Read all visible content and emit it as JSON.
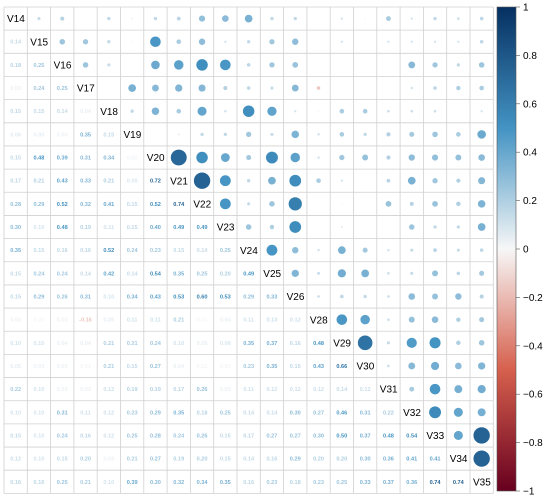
{
  "chart_data": {
    "type": "heatmap",
    "variables": [
      "V14",
      "V15",
      "V16",
      "V17",
      "V18",
      "V19",
      "V20",
      "V21",
      "V22",
      "V23",
      "V24",
      "V25",
      "V26",
      "V28",
      "V29",
      "V30",
      "V31",
      "V32",
      "V33",
      "V34",
      "V35"
    ],
    "correlations": [
      [
        1,
        0.14,
        0.18,
        0.03,
        0.15,
        0.06,
        0.15,
        0.17,
        0.28,
        0.3,
        0.35,
        0.15,
        0.15,
        0.03,
        0.1,
        0.05,
        0.22,
        0.1,
        0.15,
        0.12,
        0.16
      ],
      [
        0.14,
        1,
        0.25,
        0.24,
        0.15,
        0.05,
        0.48,
        0.21,
        0.29,
        0.1,
        0.15,
        0.24,
        0.29,
        0.01,
        0.1,
        0.03,
        0.1,
        0.1,
        0.1,
        0.1,
        0.16
      ],
      [
        0.18,
        0.25,
        1,
        0.25,
        0.14,
        0.03,
        0.39,
        0.43,
        0.52,
        0.48,
        0.16,
        0.24,
        0.26,
        0.03,
        0.04,
        0.03,
        0.03,
        0.31,
        0.24,
        0.15,
        0.25
      ],
      [
        0.03,
        0.24,
        0.25,
        1,
        0.04,
        0.35,
        0.31,
        0.33,
        0.32,
        0.19,
        0.16,
        0.14,
        0.31,
        -0.16,
        0.04,
        0.01,
        0.03,
        0.11,
        0.16,
        0.2,
        0.21
      ],
      [
        0.15,
        0.15,
        0.14,
        0.04,
        1,
        0.15,
        0.34,
        0.21,
        0.41,
        0.11,
        0.52,
        0.42,
        0.1,
        0.05,
        0.21,
        0.21,
        0.12,
        0.12,
        0.12,
        0.03,
        0.1
      ],
      [
        0.06,
        0.05,
        0.03,
        0.35,
        0.15,
        1,
        0.02,
        0.08,
        0.15,
        0.15,
        0.24,
        0.14,
        0.34,
        0.11,
        0.21,
        0.15,
        0.19,
        0.23,
        0.25,
        0.21,
        0.39
      ],
      [
        0.15,
        0.48,
        0.39,
        0.31,
        0.34,
        0.02,
        1,
        0.72,
        0.52,
        0.4,
        0.23,
        0.54,
        0.43,
        0.11,
        0.24,
        0.27,
        0.19,
        0.29,
        0.28,
        0.27,
        0.3
      ],
      [
        0.17,
        0.21,
        0.43,
        0.33,
        0.21,
        0.08,
        0.72,
        1,
        0.74,
        0.49,
        0.15,
        0.35,
        0.53,
        0.21,
        0.1,
        0.04,
        0.17,
        0.35,
        0.24,
        0.19,
        0.32
      ],
      [
        0.28,
        0.29,
        0.52,
        0.32,
        0.41,
        0.15,
        0.52,
        0.74,
        1,
        0.49,
        0.14,
        0.25,
        0.6,
        0.01,
        0.05,
        0.01,
        0.26,
        0.18,
        0.26,
        0.2,
        0.34
      ],
      [
        0.3,
        0.1,
        0.48,
        0.19,
        0.11,
        0.15,
        0.4,
        0.49,
        0.49,
        1,
        0.25,
        0.2,
        0.53,
        0.04,
        0.08,
        0.01,
        0.03,
        0.25,
        0.15,
        0.15,
        0.35
      ],
      [
        0.35,
        0.15,
        0.16,
        0.16,
        0.52,
        0.24,
        0.23,
        0.15,
        0.14,
        0.25,
        1,
        0.49,
        0.29,
        0.11,
        0.35,
        0.23,
        0.11,
        0.14,
        0.17,
        0.14,
        0.16
      ],
      [
        0.15,
        0.24,
        0.24,
        0.14,
        0.42,
        0.14,
        0.54,
        0.35,
        0.25,
        0.2,
        0.49,
        1,
        0.33,
        0.13,
        0.37,
        0.35,
        0.12,
        0.14,
        0.27,
        0.16,
        0.23
      ],
      [
        0.15,
        0.29,
        0.26,
        0.31,
        0.1,
        0.34,
        0.43,
        0.53,
        0.6,
        0.53,
        0.29,
        0.33,
        1,
        0.12,
        0.16,
        0.15,
        0.12,
        0.3,
        0.27,
        0.29,
        0.18
      ],
      [
        0.03,
        0.01,
        0.03,
        -0.16,
        0.05,
        0.11,
        0.11,
        0.21,
        0.01,
        0.04,
        0.11,
        0.13,
        0.12,
        1,
        0.48,
        0.43,
        0.12,
        0.27,
        0.3,
        0.2,
        0.23
      ],
      [
        0.1,
        0.1,
        0.04,
        0.04,
        0.21,
        0.21,
        0.24,
        0.1,
        0.05,
        0.08,
        0.35,
        0.37,
        0.16,
        0.48,
        1,
        0.66,
        0.14,
        0.46,
        0.5,
        0.2,
        0.25
      ],
      [
        0.05,
        0.03,
        0.03,
        0.01,
        0.21,
        0.15,
        0.27,
        0.04,
        0.01,
        0.01,
        0.23,
        0.35,
        0.15,
        0.43,
        0.66,
        1,
        0.12,
        0.31,
        0.37,
        0.3,
        0.33
      ],
      [
        0.22,
        0.1,
        0.03,
        0.03,
        0.12,
        0.19,
        0.19,
        0.17,
        0.26,
        0.03,
        0.11,
        0.12,
        0.12,
        0.12,
        0.14,
        0.12,
        1,
        0.22,
        0.48,
        0.36,
        0.37
      ],
      [
        0.1,
        0.1,
        0.31,
        0.11,
        0.12,
        0.23,
        0.29,
        0.35,
        0.18,
        0.25,
        0.14,
        0.14,
        0.3,
        0.27,
        0.46,
        0.31,
        0.22,
        1,
        0.54,
        0.41,
        0.36
      ],
      [
        0.15,
        0.1,
        0.24,
        0.16,
        0.12,
        0.25,
        0.28,
        0.24,
        0.26,
        0.15,
        0.17,
        0.27,
        0.27,
        0.3,
        0.5,
        0.37,
        0.48,
        0.54,
        1,
        0.41,
        0.74
      ],
      [
        0.12,
        0.1,
        0.15,
        0.2,
        0.03,
        0.21,
        0.27,
        0.19,
        0.2,
        0.15,
        0.14,
        0.16,
        0.29,
        0.2,
        0.2,
        0.3,
        0.36,
        0.41,
        0.41,
        1,
        0.74
      ],
      [
        0.16,
        0.16,
        0.25,
        0.21,
        0.1,
        0.39,
        0.3,
        0.32,
        0.34,
        0.35,
        0.16,
        0.23,
        0.18,
        0.23,
        0.25,
        0.33,
        0.37,
        0.36,
        0.74,
        0.74,
        1
      ]
    ],
    "upper_method": "circle",
    "lower_method": "number",
    "color_range": [
      -1,
      1
    ],
    "colorbar_ticks": [
      1,
      0.8,
      0.6,
      0.4,
      0.2,
      0,
      -0.2,
      -0.4,
      -0.6,
      -0.8,
      -1
    ],
    "colorbar_tick_labels": [
      "1",
      "0.8",
      "0.6",
      "0.4",
      "0.2",
      "0",
      "−0.2",
      "−0.4",
      "−0.6",
      "−0.8",
      "−1"
    ],
    "colors": {
      "negative_end": "#67001F",
      "negative_mid": "#D6604D",
      "neutral": "#F7F7F7",
      "positive_mid": "#4393C3",
      "positive_end": "#053061"
    },
    "legend_position": "right"
  }
}
